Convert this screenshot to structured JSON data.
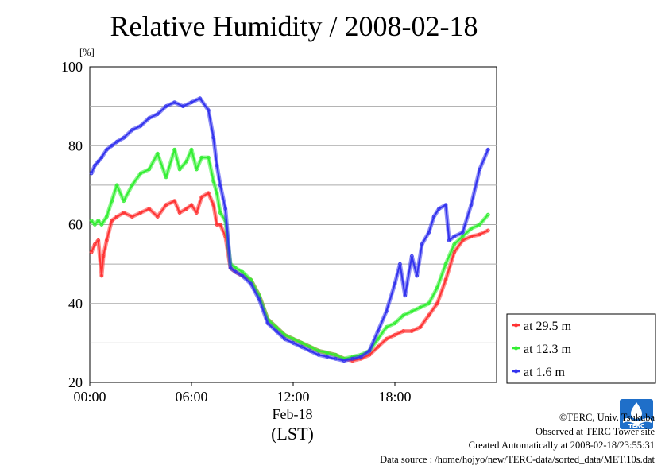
{
  "chart_data": {
    "type": "line",
    "title": "Relative Humidity / 2008-02-18",
    "ylabel": "[%]",
    "xlabel_date": "Feb-18",
    "xlabel_tz": "(LST)",
    "ylim": [
      20,
      100
    ],
    "xlim": [
      0,
      24
    ],
    "yticks": [
      20,
      40,
      60,
      80,
      100
    ],
    "xticks": [
      {
        "value": 0,
        "label": "00:00"
      },
      {
        "value": 6,
        "label": "06:00"
      },
      {
        "value": 12,
        "label": "12:00"
      },
      {
        "value": 18,
        "label": "18:00"
      }
    ],
    "grid": true,
    "legend_position": "right",
    "series": [
      {
        "name": "at 29.5 m",
        "color": "#ff3333",
        "x": [
          0.1,
          0.3,
          0.5,
          0.7,
          0.8,
          1.0,
          1.3,
          1.6,
          2.0,
          2.5,
          3.0,
          3.5,
          4.0,
          4.5,
          5.0,
          5.3,
          5.7,
          6.0,
          6.3,
          6.6,
          7.0,
          7.3,
          7.5,
          7.7,
          8.0,
          8.3,
          8.6,
          9.0,
          9.5,
          10.0,
          10.5,
          11.0,
          11.5,
          12.0,
          12.5,
          13.0,
          13.5,
          14.0,
          14.5,
          15.0,
          15.5,
          16.0,
          16.5,
          17.0,
          17.5,
          18.0,
          18.5,
          19.0,
          19.5,
          20.0,
          20.5,
          21.0,
          21.5,
          22.0,
          22.5,
          23.0,
          23.5
        ],
        "values": [
          53,
          55,
          56,
          47,
          52,
          56,
          61,
          62,
          63,
          62,
          63,
          64,
          62,
          65,
          66,
          63,
          64,
          65,
          63,
          67,
          68,
          65,
          60,
          60,
          57,
          49,
          48,
          47,
          46,
          42,
          36,
          34,
          32,
          31,
          30,
          29,
          28,
          27.5,
          27,
          26,
          25.5,
          26,
          27,
          29,
          31,
          32,
          33,
          33,
          34,
          37,
          40,
          46,
          53,
          56,
          57,
          57.5,
          58.5
        ]
      },
      {
        "name": "at 12.3 m",
        "color": "#33ee33",
        "x": [
          0.1,
          0.3,
          0.5,
          0.7,
          1.0,
          1.3,
          1.6,
          2.0,
          2.5,
          3.0,
          3.5,
          4.0,
          4.5,
          5.0,
          5.3,
          5.7,
          6.0,
          6.3,
          6.6,
          7.0,
          7.3,
          7.5,
          7.7,
          8.0,
          8.3,
          8.6,
          9.0,
          9.5,
          10.0,
          10.5,
          11.0,
          11.5,
          12.0,
          12.5,
          13.0,
          13.5,
          14.0,
          14.5,
          15.0,
          15.5,
          16.0,
          16.5,
          17.0,
          17.5,
          18.0,
          18.5,
          19.0,
          19.5,
          20.0,
          20.5,
          21.0,
          21.5,
          22.0,
          22.5,
          23.0,
          23.5
        ],
        "values": [
          61,
          60,
          61,
          60,
          62,
          66,
          70,
          66,
          70,
          73,
          74,
          78,
          72,
          79,
          74,
          76,
          79,
          74,
          77,
          77,
          71,
          68,
          63,
          61,
          50,
          49,
          48,
          46,
          42,
          36,
          34,
          32,
          31,
          30,
          29,
          28,
          27.5,
          27,
          26,
          26.5,
          27,
          28,
          31,
          34,
          35,
          37,
          38,
          39,
          40,
          44,
          50,
          55,
          57,
          59,
          60,
          62.5
        ]
      },
      {
        "name": "at 1.6 m",
        "color": "#3333ee",
        "x": [
          0.1,
          0.3,
          0.5,
          0.7,
          1.0,
          1.3,
          1.6,
          2.0,
          2.5,
          3.0,
          3.5,
          4.0,
          4.5,
          5.0,
          5.5,
          6.0,
          6.5,
          7.0,
          7.3,
          7.5,
          7.7,
          8.0,
          8.3,
          8.6,
          9.0,
          9.5,
          10.0,
          10.5,
          11.0,
          11.5,
          12.0,
          12.5,
          13.0,
          13.5,
          14.0,
          14.5,
          15.0,
          15.5,
          16.0,
          16.5,
          17.0,
          17.5,
          18.0,
          18.3,
          18.6,
          19.0,
          19.3,
          19.6,
          20.0,
          20.3,
          20.6,
          21.0,
          21.2,
          21.5,
          22.0,
          22.5,
          23.0,
          23.5
        ],
        "values": [
          73,
          75,
          76,
          77,
          79,
          80,
          81,
          82,
          84,
          85,
          87,
          88,
          90,
          91,
          90,
          91,
          92,
          89,
          82,
          75,
          70,
          64,
          49,
          48,
          47,
          45,
          41,
          35,
          33,
          31,
          30,
          29,
          28,
          27,
          26.5,
          26,
          25.5,
          26,
          26.5,
          28,
          33,
          38,
          45,
          50,
          42,
          52,
          47,
          55,
          58,
          62,
          64,
          65,
          56,
          57,
          58,
          65,
          74,
          79
        ]
      }
    ]
  },
  "footer": {
    "copyright": "©TERC, Univ. Tsukuba",
    "observed": "Observed at TERC Tower site",
    "created": "Created Automatically at 2008-02-18/23:55:31",
    "source": "Data source : /home/hojyo/new/TERC-data/sorted_data/MET.10s.dat"
  },
  "logo": {
    "text": "TERC"
  }
}
